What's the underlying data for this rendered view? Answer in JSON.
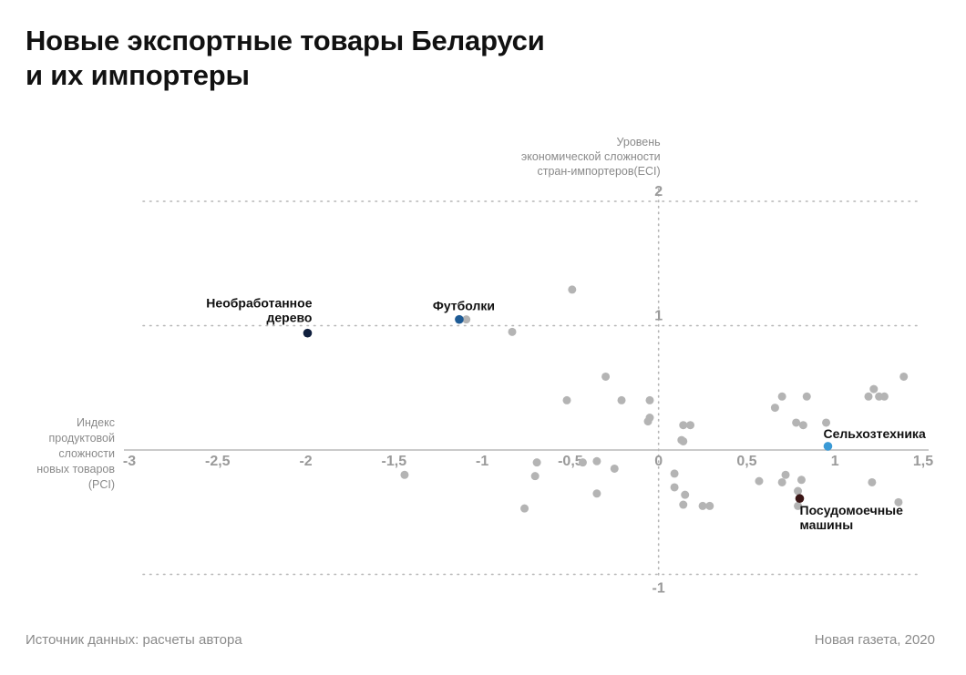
{
  "header": {
    "title_lines": [
      "Новые экспортные товары Беларуси",
      "и их импортеры"
    ]
  },
  "footer": {
    "source": "Источник данных: расчеты автора",
    "credit": "Новая газета, 2020"
  },
  "colors": {
    "background_point": "#b4b4b4",
    "axis": "#b9b9b9",
    "grid": "#b5b5b5",
    "tick_label": "#9a9a9a"
  },
  "chart_data": {
    "type": "scatter",
    "title": "Новые экспортные товары Беларуси и их импортеры",
    "xlabel_lines": [
      "Индекс",
      "продуктовой",
      "сложности",
      "новых товаров",
      "(PCI)"
    ],
    "ylabel_lines": [
      "Уровень",
      "экономической сложности",
      "стран-импортеров(ECI)"
    ],
    "xlim": [
      -3,
      1.5
    ],
    "ylim": [
      -1,
      2
    ],
    "x_ticks": [
      -3,
      -2.5,
      -2,
      -1.5,
      -1,
      -0.5,
      0,
      0.5,
      1,
      1.5
    ],
    "x_tick_labels": [
      "-3",
      "-2,5",
      "-2",
      "-1,5",
      "-1",
      "-0,5",
      "0",
      "0,5",
      "1",
      "1,5"
    ],
    "y_ticks": [
      2,
      1,
      -1
    ],
    "y_tick_labels": [
      "2",
      "1",
      "-1"
    ],
    "grid": "horizontal dotted at y = 2, 1, -1",
    "highlighted": [
      {
        "label_lines": [
          "Необработанное",
          "дерево"
        ],
        "x": -1.99,
        "y": 0.94,
        "color": "#0f1f3d",
        "label_anchor": "left-above"
      },
      {
        "label_lines": [
          "Футболки"
        ],
        "x": -1.13,
        "y": 1.05,
        "color": "#1d5a94",
        "label_anchor": "above"
      },
      {
        "label_lines": [
          "Сельхозтехника"
        ],
        "x": 0.96,
        "y": 0.03,
        "color": "#3a9ad6",
        "label_anchor": "right-above"
      },
      {
        "label_lines": [
          "Посудомоечные",
          "машины"
        ],
        "x": 0.8,
        "y": -0.39,
        "color": "#3a1515",
        "label_anchor": "below"
      }
    ],
    "points": [
      {
        "x": -0.49,
        "y": 1.29
      },
      {
        "x": -1.09,
        "y": 1.05
      },
      {
        "x": -0.83,
        "y": 0.95
      },
      {
        "x": -0.3,
        "y": 0.59
      },
      {
        "x": -0.52,
        "y": 0.4
      },
      {
        "x": -0.21,
        "y": 0.4
      },
      {
        "x": -0.05,
        "y": 0.4
      },
      {
        "x": -0.05,
        "y": 0.26
      },
      {
        "x": -0.06,
        "y": 0.23
      },
      {
        "x": 0.14,
        "y": 0.2
      },
      {
        "x": 0.18,
        "y": 0.2
      },
      {
        "x": 0.13,
        "y": 0.08
      },
      {
        "x": 0.14,
        "y": 0.07
      },
      {
        "x": 0.66,
        "y": 0.34
      },
      {
        "x": 0.7,
        "y": 0.43
      },
      {
        "x": 0.84,
        "y": 0.43
      },
      {
        "x": 0.78,
        "y": 0.22
      },
      {
        "x": 0.82,
        "y": 0.2
      },
      {
        "x": 0.95,
        "y": 0.22
      },
      {
        "x": 1.19,
        "y": 0.43
      },
      {
        "x": 1.22,
        "y": 0.49
      },
      {
        "x": 1.25,
        "y": 0.43
      },
      {
        "x": 1.28,
        "y": 0.43
      },
      {
        "x": 1.39,
        "y": 0.59
      },
      {
        "x": -1.44,
        "y": -0.2
      },
      {
        "x": -0.69,
        "y": -0.1
      },
      {
        "x": -0.7,
        "y": -0.21
      },
      {
        "x": -0.43,
        "y": -0.1
      },
      {
        "x": -0.35,
        "y": -0.09
      },
      {
        "x": -0.25,
        "y": -0.15
      },
      {
        "x": -0.35,
        "y": -0.35
      },
      {
        "x": -0.76,
        "y": -0.47
      },
      {
        "x": 0.09,
        "y": -0.19
      },
      {
        "x": 0.09,
        "y": -0.3
      },
      {
        "x": 0.15,
        "y": -0.36
      },
      {
        "x": 0.14,
        "y": -0.44
      },
      {
        "x": 0.25,
        "y": -0.45
      },
      {
        "x": 0.29,
        "y": -0.45
      },
      {
        "x": 0.57,
        "y": -0.25
      },
      {
        "x": 0.72,
        "y": -0.2
      },
      {
        "x": 0.7,
        "y": -0.26
      },
      {
        "x": 0.81,
        "y": -0.24
      },
      {
        "x": 0.79,
        "y": -0.33
      },
      {
        "x": 0.79,
        "y": -0.45
      },
      {
        "x": 1.21,
        "y": -0.26
      },
      {
        "x": 1.36,
        "y": -0.42
      }
    ]
  }
}
